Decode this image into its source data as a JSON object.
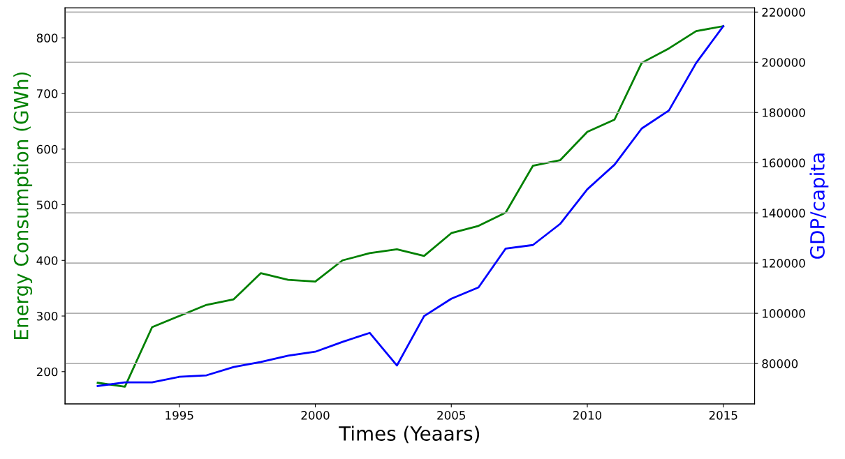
{
  "chart_data": {
    "type": "line",
    "xlabel": "Times (Yeaars)",
    "ylabel": "Energy Consumption (GWh)",
    "y2label": "GDP/capita",
    "x": [
      1992,
      1993,
      1994,
      1995,
      1996,
      1997,
      1998,
      1999,
      2000,
      2001,
      2002,
      2003,
      2004,
      2005,
      2006,
      2007,
      2008,
      2009,
      2010,
      2011,
      2012,
      2013,
      2014,
      2015
    ],
    "series": [
      {
        "color": "#008000",
        "axis": "y",
        "values": [
          180,
          173,
          280,
          300,
          320,
          330,
          377,
          365,
          362,
          400,
          413,
          420,
          408,
          449,
          462,
          486,
          570,
          580,
          631,
          653,
          755,
          781,
          812,
          821
        ]
      },
      {
        "color": "#0000ff",
        "axis": "y2",
        "values": [
          71000,
          72500,
          72500,
          74700,
          75300,
          78600,
          80600,
          83100,
          84700,
          88600,
          92200,
          79200,
          98900,
          105800,
          110300,
          125800,
          127200,
          135600,
          149400,
          159200,
          173600,
          180800,
          199700,
          214400
        ]
      }
    ],
    "xlim": [
      1990.8,
      2016.15
    ],
    "xticks": [
      1995,
      2000,
      2005,
      2010,
      2015
    ],
    "ylim": [
      142,
      854
    ],
    "yticks": [
      200,
      300,
      400,
      500,
      600,
      700,
      800
    ],
    "y2lim": [
      63900,
      221700
    ],
    "y2ticks": [
      80000,
      100000,
      120000,
      140000,
      160000,
      180000,
      200000,
      220000
    ],
    "grid": "y2",
    "legend": false
  }
}
